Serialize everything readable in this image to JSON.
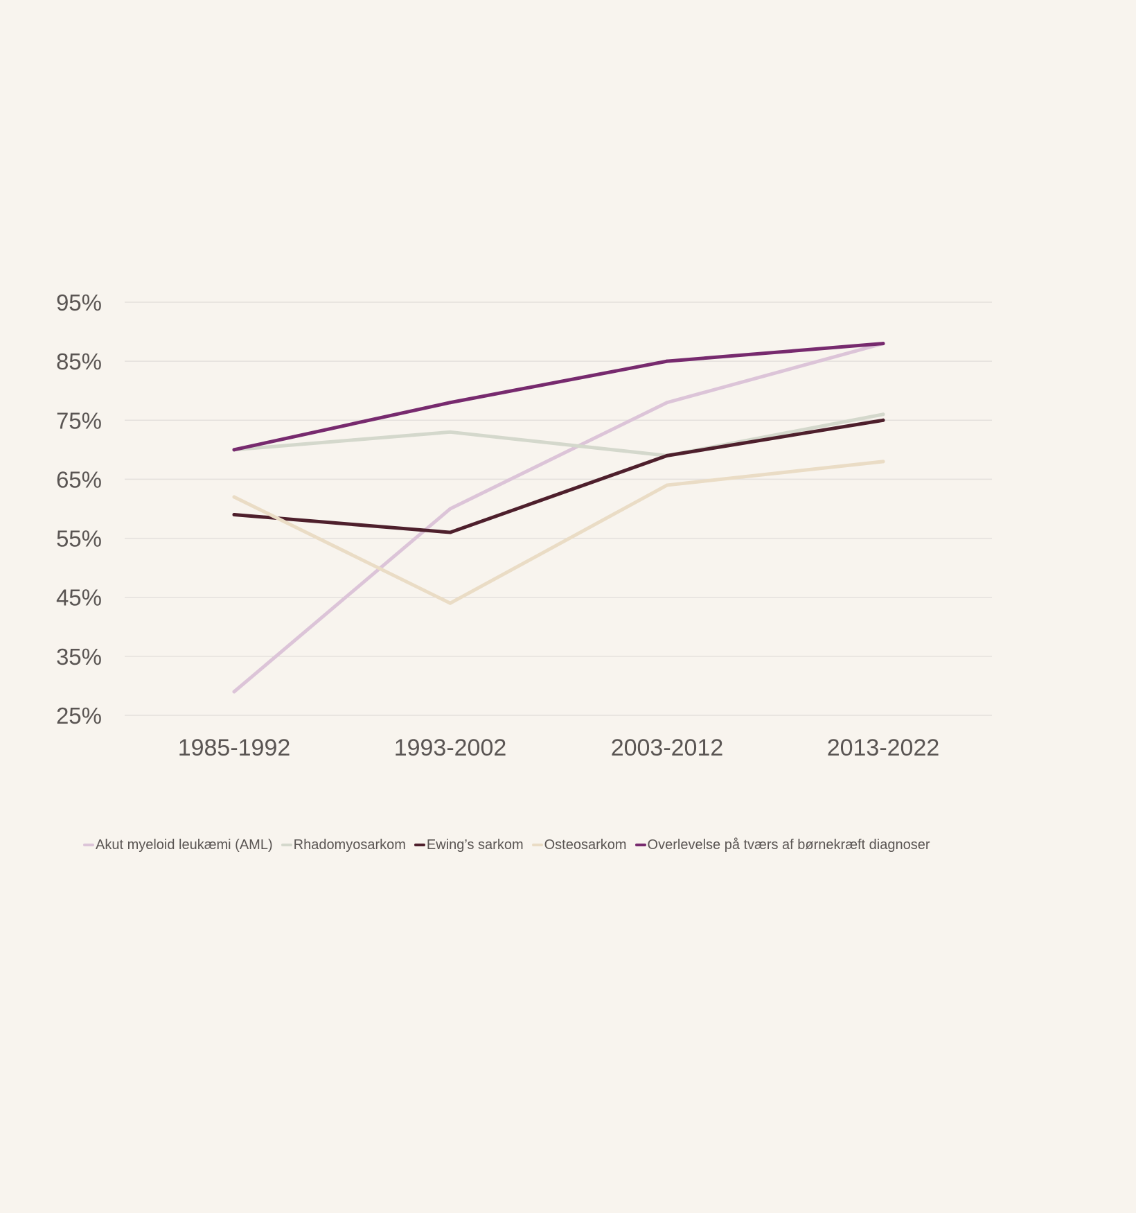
{
  "chart_data": {
    "type": "line",
    "title": "",
    "xlabel": "",
    "ylabel": "",
    "categories": [
      "1985-1992",
      "1993-2002",
      "2003-2012",
      "2013-2022"
    ],
    "y_ticks": [
      "25%",
      "35%",
      "45%",
      "55%",
      "65%",
      "75%",
      "85%",
      "95%"
    ],
    "ylim": [
      25,
      95
    ],
    "grid": true,
    "legend_position": "bottom",
    "series": [
      {
        "name": "Akut myeloid leukæmi (AML)",
        "color": "#dcc4d8",
        "values": [
          29,
          60,
          78,
          88
        ]
      },
      {
        "name": "Rhadomyosarkom",
        "color": "#d4d8cc",
        "values": [
          70,
          73,
          69,
          76
        ]
      },
      {
        "name": "Ewing’s sarkom",
        "color": "#4e1f2c",
        "values": [
          59,
          56,
          69,
          75
        ]
      },
      {
        "name": "Osteosarkom",
        "color": "#eadcc5",
        "values": [
          62,
          44,
          64,
          68
        ]
      },
      {
        "name": "Overlevelse på tværs af børnekræft diagnoser",
        "color": "#772a6e",
        "values": [
          70,
          78,
          85,
          88
        ]
      }
    ]
  }
}
